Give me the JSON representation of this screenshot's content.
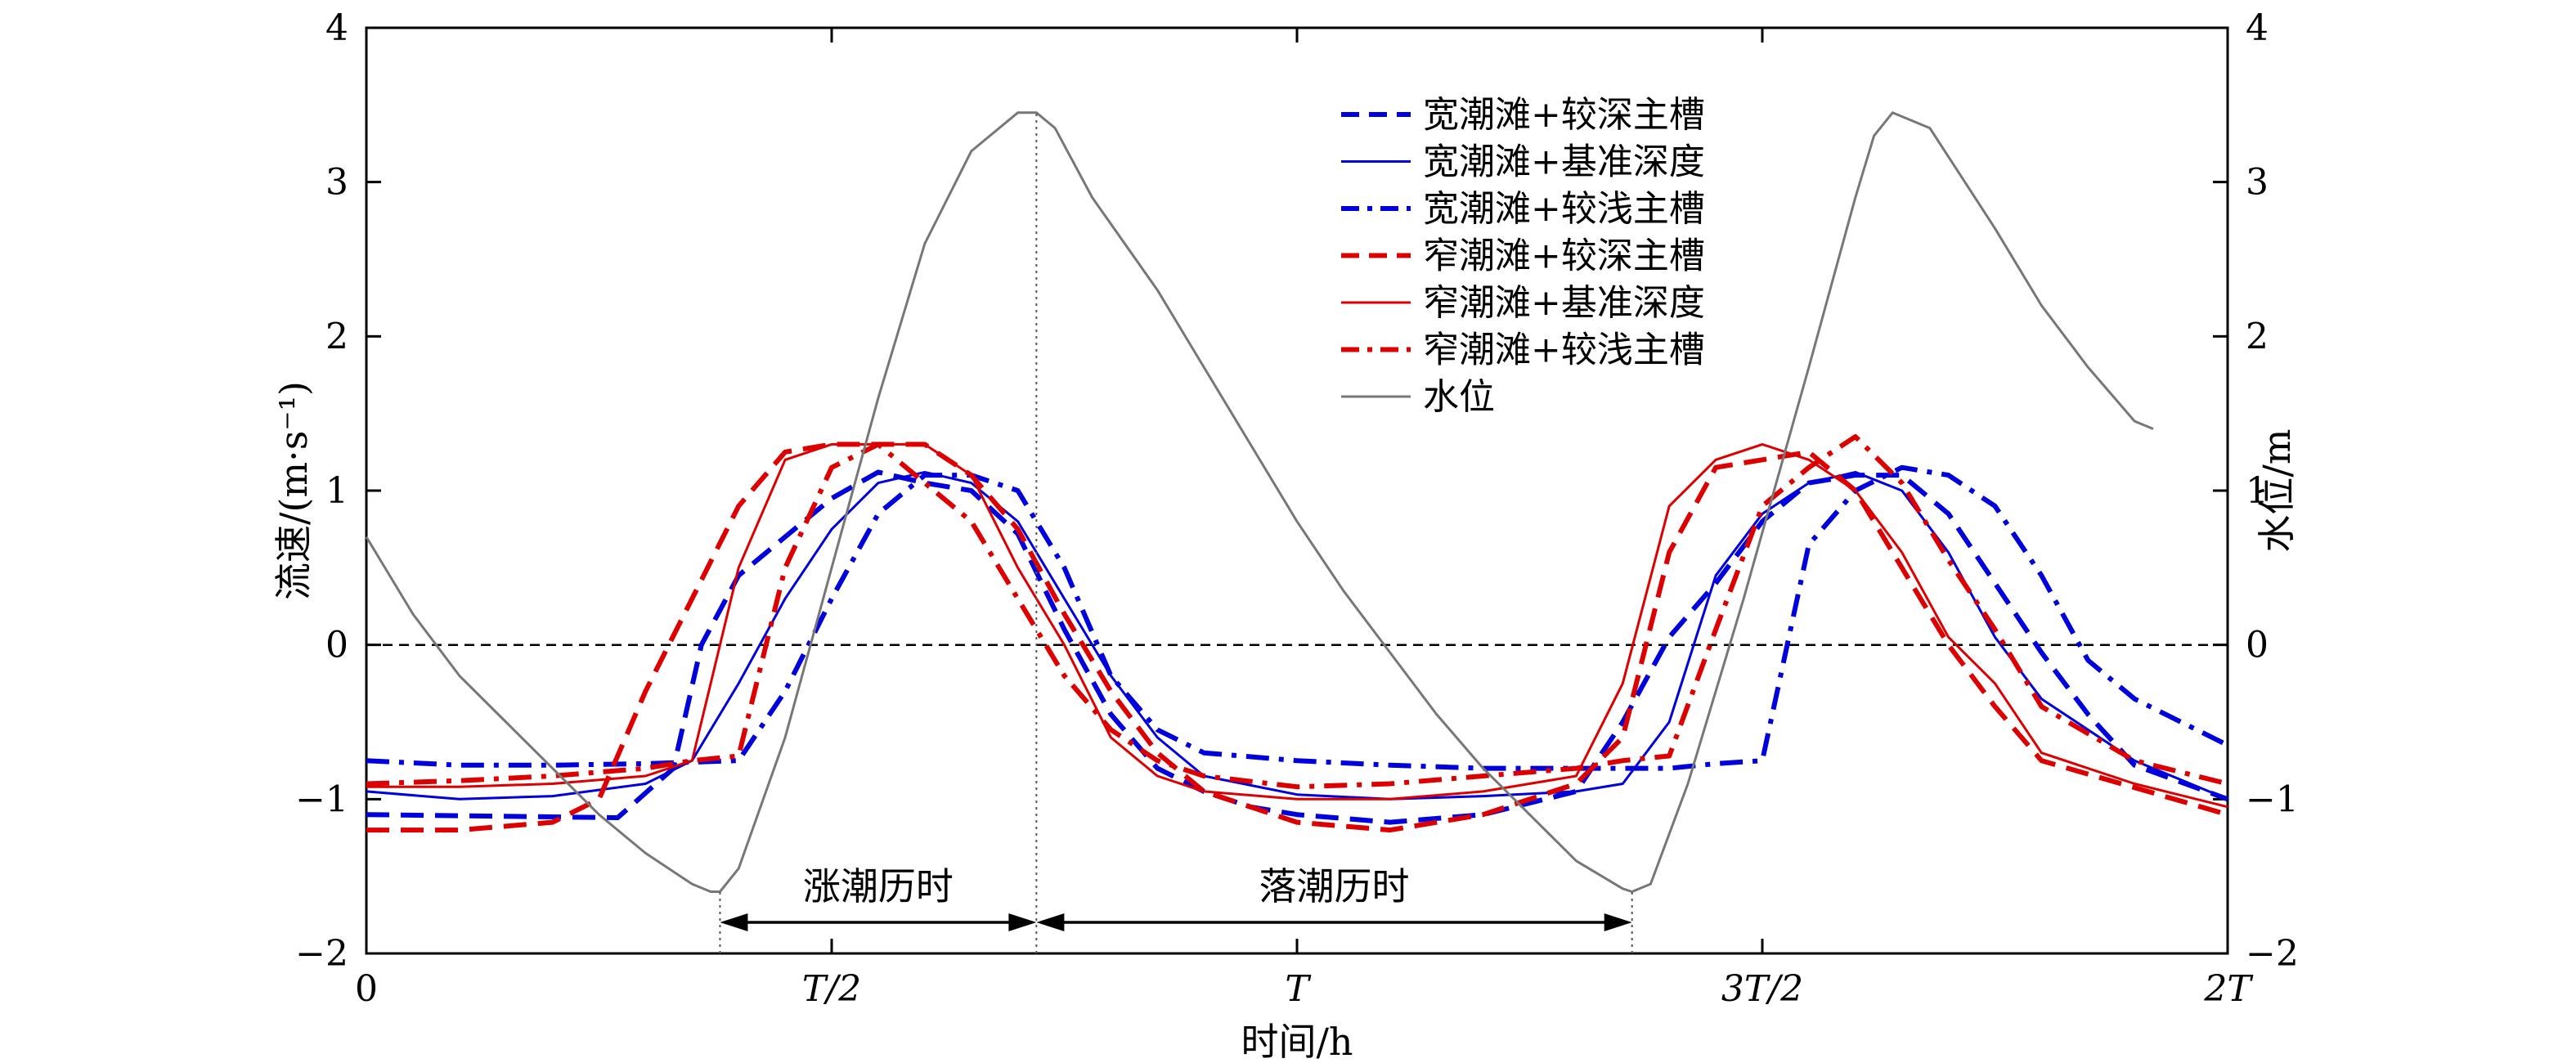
{
  "chart_data": {
    "type": "line",
    "xlabel": "时间/h",
    "ylabel_left": "流速/(m·s⁻¹)",
    "ylabel_right": "水位/m",
    "xlim": [
      0,
      2
    ],
    "ylim": [
      -2,
      4
    ],
    "y2lim": [
      -2,
      4
    ],
    "x_unit": "T (tidal period)",
    "x_ticks": [
      {
        "value": 0,
        "label": "0"
      },
      {
        "value": 0.5,
        "label": "T/2"
      },
      {
        "value": 1,
        "label": "T"
      },
      {
        "value": 1.5,
        "label": "3T/2"
      },
      {
        "value": 2,
        "label": "2T"
      }
    ],
    "y_ticks": [
      {
        "value": -2,
        "label": "−2"
      },
      {
        "value": -1,
        "label": "−1"
      },
      {
        "value": 0,
        "label": "0"
      },
      {
        "value": 1,
        "label": "1"
      },
      {
        "value": 2,
        "label": "2"
      },
      {
        "value": 3,
        "label": "3"
      },
      {
        "value": 4,
        "label": "4"
      }
    ],
    "y2_ticks": [
      {
        "value": -2,
        "label": "−2"
      },
      {
        "value": -1,
        "label": "−1"
      },
      {
        "value": 0,
        "label": "0"
      },
      {
        "value": 1,
        "label": "1"
      },
      {
        "value": 2,
        "label": "2"
      },
      {
        "value": 3,
        "label": "3"
      },
      {
        "value": 4,
        "label": "4"
      }
    ],
    "grid": false,
    "legend_position": "top-center",
    "zero_line": true,
    "series": [
      {
        "name": "宽潮滩+较深主槽",
        "color": "#0000dd",
        "style": "dashed",
        "weight": "bold",
        "x": [
          0,
          0.27,
          0.33,
          0.36,
          0.4,
          0.5,
          0.55,
          0.6,
          0.65,
          0.7,
          0.75,
          0.8,
          0.85,
          0.9,
          0.95,
          1.0,
          1.1,
          1.2,
          1.3,
          1.35,
          1.4,
          1.45,
          1.5,
          1.55,
          1.6,
          1.65,
          1.7,
          1.75,
          1.8,
          1.85,
          1.9,
          2.0
        ],
        "y": [
          -1.1,
          -1.12,
          -0.8,
          0.0,
          0.45,
          0.95,
          1.12,
          1.05,
          1.0,
          0.72,
          0.1,
          -0.45,
          -0.8,
          -0.95,
          -1.05,
          -1.1,
          -1.15,
          -1.1,
          -0.95,
          -0.5,
          0.05,
          0.4,
          0.8,
          1.05,
          1.1,
          1.1,
          0.85,
          0.4,
          -0.05,
          -0.45,
          -0.78,
          -1.0
        ]
      },
      {
        "name": "宽潮滩+基准深度",
        "color": "#0000dd",
        "style": "solid",
        "weight": "thin",
        "x": [
          0,
          0.1,
          0.2,
          0.3,
          0.35,
          0.4,
          0.45,
          0.5,
          0.55,
          0.6,
          0.65,
          0.7,
          0.75,
          0.8,
          0.85,
          0.9,
          1.0,
          1.1,
          1.2,
          1.3,
          1.35,
          1.4,
          1.45,
          1.5,
          1.55,
          1.6,
          1.65,
          1.7,
          1.75,
          1.8,
          1.9,
          2.0
        ],
        "y": [
          -0.95,
          -1.0,
          -0.98,
          -0.9,
          -0.75,
          -0.25,
          0.3,
          0.75,
          1.05,
          1.12,
          1.05,
          0.8,
          0.3,
          -0.2,
          -0.6,
          -0.85,
          -0.97,
          -1.0,
          -0.98,
          -0.95,
          -0.9,
          -0.5,
          0.45,
          0.85,
          1.05,
          1.12,
          1.0,
          0.6,
          0.05,
          -0.35,
          -0.75,
          -1.0
        ]
      },
      {
        "name": "宽潮滩+较浅主槽",
        "color": "#0000dd",
        "style": "dashdot",
        "weight": "bold",
        "x": [
          0,
          0.1,
          0.2,
          0.3,
          0.35,
          0.4,
          0.45,
          0.5,
          0.55,
          0.6,
          0.65,
          0.7,
          0.75,
          0.8,
          0.85,
          0.9,
          1.0,
          1.1,
          1.2,
          1.3,
          1.4,
          1.45,
          1.5,
          1.55,
          1.6,
          1.65,
          1.7,
          1.75,
          1.8,
          1.85,
          1.9,
          2.0
        ],
        "y": [
          -0.75,
          -0.78,
          -0.78,
          -0.77,
          -0.76,
          -0.75,
          -0.3,
          0.3,
          0.85,
          1.1,
          1.1,
          1.0,
          0.5,
          -0.2,
          -0.55,
          -0.7,
          -0.75,
          -0.78,
          -0.8,
          -0.8,
          -0.8,
          -0.77,
          -0.75,
          0.65,
          1.0,
          1.15,
          1.1,
          0.9,
          0.45,
          -0.1,
          -0.35,
          -0.65
        ]
      },
      {
        "name": "窄潮滩+较深主槽",
        "color": "#dd0000",
        "style": "dashed",
        "weight": "bold",
        "x": [
          0,
          0.1,
          0.2,
          0.25,
          0.3,
          0.35,
          0.4,
          0.45,
          0.5,
          0.55,
          0.6,
          0.65,
          0.7,
          0.75,
          0.8,
          0.85,
          0.9,
          1.0,
          1.1,
          1.2,
          1.3,
          1.35,
          1.4,
          1.45,
          1.5,
          1.55,
          1.6,
          1.65,
          1.7,
          1.75,
          1.8,
          2.0
        ],
        "y": [
          -1.2,
          -1.2,
          -1.15,
          -1.0,
          -0.3,
          0.3,
          0.9,
          1.25,
          1.3,
          1.3,
          1.3,
          1.1,
          0.75,
          0.2,
          -0.3,
          -0.7,
          -0.95,
          -1.15,
          -1.2,
          -1.1,
          -0.9,
          -0.6,
          0.6,
          1.15,
          1.2,
          1.25,
          1.0,
          0.5,
          0.0,
          -0.4,
          -0.75,
          -1.1
        ]
      },
      {
        "name": "窄潮滩+基准深度",
        "color": "#dd0000",
        "style": "solid",
        "weight": "thin",
        "x": [
          0,
          0.1,
          0.2,
          0.3,
          0.35,
          0.4,
          0.45,
          0.5,
          0.55,
          0.6,
          0.65,
          0.7,
          0.75,
          0.8,
          0.85,
          0.9,
          1.0,
          1.1,
          1.2,
          1.3,
          1.35,
          1.4,
          1.45,
          1.5,
          1.55,
          1.6,
          1.65,
          1.7,
          1.75,
          1.8,
          1.9,
          2.0
        ],
        "y": [
          -0.92,
          -0.92,
          -0.9,
          -0.85,
          -0.75,
          0.5,
          1.2,
          1.3,
          1.3,
          1.3,
          1.1,
          0.5,
          0.0,
          -0.6,
          -0.85,
          -0.95,
          -1.0,
          -1.0,
          -0.95,
          -0.85,
          -0.25,
          0.9,
          1.2,
          1.3,
          1.2,
          1.0,
          0.6,
          0.05,
          -0.25,
          -0.7,
          -0.9,
          -1.05
        ]
      },
      {
        "name": "窄潮滩+较浅主槽",
        "color": "#dd0000",
        "style": "dashdot",
        "weight": "bold",
        "x": [
          0,
          0.1,
          0.2,
          0.3,
          0.35,
          0.4,
          0.45,
          0.5,
          0.55,
          0.6,
          0.65,
          0.7,
          0.75,
          0.8,
          0.85,
          0.9,
          1.0,
          1.1,
          1.2,
          1.3,
          1.35,
          1.4,
          1.45,
          1.5,
          1.55,
          1.6,
          1.65,
          1.7,
          1.75,
          1.8,
          1.9,
          2.0
        ],
        "y": [
          -0.9,
          -0.88,
          -0.85,
          -0.8,
          -0.75,
          -0.72,
          0.5,
          1.15,
          1.3,
          1.05,
          0.8,
          0.3,
          -0.2,
          -0.55,
          -0.75,
          -0.85,
          -0.92,
          -0.9,
          -0.85,
          -0.8,
          -0.75,
          -0.72,
          0.1,
          0.9,
          1.15,
          1.35,
          1.05,
          0.55,
          0.1,
          -0.4,
          -0.75,
          -0.9
        ]
      },
      {
        "name": "水位",
        "color": "#777777",
        "style": "solid",
        "weight": "thin",
        "axis": "right",
        "x": [
          0,
          0.05,
          0.1,
          0.15,
          0.2,
          0.25,
          0.3,
          0.35,
          0.37,
          0.38,
          0.4,
          0.45,
          0.5,
          0.55,
          0.6,
          0.65,
          0.7,
          0.72,
          0.74,
          0.78,
          0.85,
          0.9,
          0.95,
          1.0,
          1.05,
          1.1,
          1.15,
          1.2,
          1.25,
          1.3,
          1.35,
          1.36,
          1.38,
          1.42,
          1.48,
          1.55,
          1.6,
          1.62,
          1.64,
          1.68,
          1.75,
          1.8,
          1.85,
          1.9,
          1.92
        ],
        "y": [
          0.7,
          0.2,
          -0.2,
          -0.5,
          -0.8,
          -1.1,
          -1.35,
          -1.55,
          -1.6,
          -1.6,
          -1.45,
          -0.6,
          0.5,
          1.6,
          2.6,
          3.2,
          3.45,
          3.45,
          3.35,
          2.9,
          2.3,
          1.8,
          1.3,
          0.8,
          0.35,
          -0.05,
          -0.45,
          -0.8,
          -1.1,
          -1.4,
          -1.58,
          -1.6,
          -1.55,
          -0.9,
          0.3,
          1.8,
          2.9,
          3.3,
          3.45,
          3.35,
          2.7,
          2.2,
          1.8,
          1.45,
          1.4
        ]
      }
    ],
    "annotations": {
      "flood_label": "涨潮历时",
      "ebb_label": "落潮历时",
      "flood_start": 0.38,
      "flood_end": 0.72,
      "ebb_end": 1.36
    }
  }
}
